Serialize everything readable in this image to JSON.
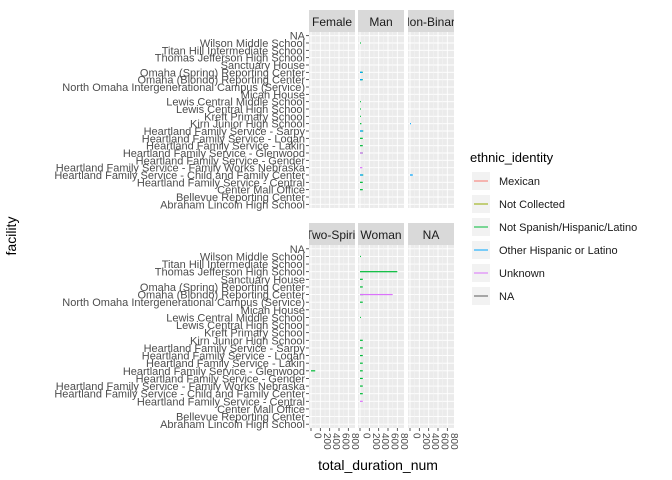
{
  "chart_data": {
    "type": "bar",
    "orientation": "horizontal",
    "faceted": true,
    "xlabel": "total_duration_num",
    "ylabel": "facility",
    "x_ticks": [
      "0",
      "200",
      "400",
      "600",
      "800"
    ],
    "xlim": [
      0,
      900
    ],
    "grid": true,
    "legend": {
      "title": "ethnic_identity",
      "position": "right",
      "entries": [
        {
          "name": "Mexican",
          "color": "#F8766D"
        },
        {
          "name": "Not Collected",
          "color": "#93AA00"
        },
        {
          "name": "Not Spanish/Hispanic/Latino",
          "color": "#00BA38"
        },
        {
          "name": "Other Hispanic or Latino",
          "color": "#00A5FF"
        },
        {
          "name": "Unknown",
          "color": "#DB72FB"
        },
        {
          "name": "NA",
          "color": "#595959"
        }
      ]
    },
    "categories": [
      "NA",
      "Wilson Middle School",
      "Titan Hill Intermediate School",
      "Thomas Jefferson High School",
      "Sanctuary House",
      "Omaha (Spring) Reporting Center",
      "Omaha (Blondo) Reporting Center",
      "North Omaha Intergenerational Campus (Service)",
      "Micah House",
      "Lewis Central Middle School",
      "Lewis Central High School",
      "Kreft Primary School",
      "Kirn Junior High  School",
      "Heartland Family Service - Sarpy",
      "Heartland Family Service - Logan",
      "Heartland Family Service - Lakin",
      "Heartland Family Service - Glenwood",
      "Heartland Family Service - Gender",
      "Heartland Family Service - Family Works Nebraska",
      "Heartland Family Service - Child and Family Center",
      "Heartland Family Service - Central",
      "Center Mall Office",
      "Bellevue Reporting Center",
      "Abraham Lincoln High School"
    ],
    "facets": [
      {
        "label": "Female",
        "row": 0,
        "col": 0,
        "bars": []
      },
      {
        "label": "Man",
        "row": 0,
        "col": 1,
        "bars": [
          {
            "category": "Wilson Middle School",
            "color": "#00BA38",
            "value": 20
          },
          {
            "category": "Omaha (Spring) Reporting Center",
            "color": "#00BA38",
            "value": 60
          },
          {
            "category": "Omaha (Spring) Reporting Center",
            "color": "#00A5FF",
            "value": 50
          },
          {
            "category": "Omaha (Blondo) Reporting Center",
            "color": "#00BA38",
            "value": 60
          },
          {
            "category": "Omaha (Blondo) Reporting Center",
            "color": "#00A5FF",
            "value": 50
          },
          {
            "category": "Lewis Central Middle School",
            "color": "#00BA38",
            "value": 20
          },
          {
            "category": "Lewis Central High School",
            "color": "#00BA38",
            "value": 20
          },
          {
            "category": "Kreft Primary School",
            "color": "#00BA38",
            "value": 20
          },
          {
            "category": "Kirn Junior High  School",
            "color": "#00BA38",
            "value": 30
          },
          {
            "category": "Heartland Family Service - Sarpy",
            "color": "#00BA38",
            "value": 70
          },
          {
            "category": "Heartland Family Service - Sarpy",
            "color": "#00A5FF",
            "value": 60
          },
          {
            "category": "Heartland Family Service - Logan",
            "color": "#00BA38",
            "value": 60
          },
          {
            "category": "Heartland Family Service - Lakin",
            "color": "#00BA38",
            "value": 60
          },
          {
            "category": "Heartland Family Service - Glenwood",
            "color": "#00BA38",
            "value": 60
          },
          {
            "category": "Heartland Family Service - Glenwood",
            "color": "#DB72FB",
            "value": 60
          },
          {
            "category": "Heartland Family Service - Family Works Nebraska",
            "color": "#DB72FB",
            "value": 50
          },
          {
            "category": "Heartland Family Service - Child and Family Center",
            "color": "#00BA38",
            "value": 70
          },
          {
            "category": "Heartland Family Service - Child and Family Center",
            "color": "#00A5FF",
            "value": 60
          },
          {
            "category": "Heartland Family Service - Central",
            "color": "#00BA38",
            "value": 60
          },
          {
            "category": "Center Mall Office",
            "color": "#00BA38",
            "value": 60
          }
        ]
      },
      {
        "label": "Non-Binary",
        "row": 0,
        "col": 2,
        "bars": [
          {
            "category": "Kirn Junior High  School",
            "color": "#00A5FF",
            "value": 20
          },
          {
            "category": "Heartland Family Service - Child and Family Center",
            "color": "#00A5FF",
            "value": 60
          }
        ]
      },
      {
        "label": "Two-Spirit",
        "row": 1,
        "col": 0,
        "bars": [
          {
            "category": "Heartland Family Service - Glenwood",
            "color": "#00BA38",
            "value": 90
          }
        ]
      },
      {
        "label": "Woman",
        "row": 1,
        "col": 1,
        "bars": [
          {
            "category": "Wilson Middle School",
            "color": "#00BA38",
            "value": 20
          },
          {
            "category": "Thomas Jefferson High School",
            "color": "#00BA38",
            "value": 800
          },
          {
            "category": "Sanctuary House",
            "color": "#00BA38",
            "value": 60
          },
          {
            "category": "Omaha (Spring) Reporting Center",
            "color": "#00BA38",
            "value": 60
          },
          {
            "category": "Omaha (Blondo) Reporting Center",
            "color": "#00BA38",
            "value": 70
          },
          {
            "category": "Omaha (Blondo) Reporting Center",
            "color": "#DB72FB",
            "value": 700
          },
          {
            "category": "North Omaha Intergenerational Campus (Service)",
            "color": "#00BA38",
            "value": 60
          },
          {
            "category": "Lewis Central Middle School",
            "color": "#00BA38",
            "value": 20
          },
          {
            "category": "Kirn Junior High  School",
            "color": "#00BA38",
            "value": 60
          },
          {
            "category": "Heartland Family Service - Sarpy",
            "color": "#00BA38",
            "value": 60
          },
          {
            "category": "Heartland Family Service - Logan",
            "color": "#00BA38",
            "value": 60
          },
          {
            "category": "Heartland Family Service - Lakin",
            "color": "#00BA38",
            "value": 60
          },
          {
            "category": "Heartland Family Service - Glenwood",
            "color": "#00BA38",
            "value": 60
          },
          {
            "category": "Heartland Family Service - Gender",
            "color": "#00BA38",
            "value": 60
          },
          {
            "category": "Heartland Family Service - Family Works Nebraska",
            "color": "#00BA38",
            "value": 60
          },
          {
            "category": "Heartland Family Service - Child and Family Center",
            "color": "#00BA38",
            "value": 60
          },
          {
            "category": "Heartland Family Service - Central",
            "color": "#DB72FB",
            "value": 60
          }
        ]
      },
      {
        "label": "NA",
        "row": 1,
        "col": 2,
        "bars": []
      }
    ]
  }
}
